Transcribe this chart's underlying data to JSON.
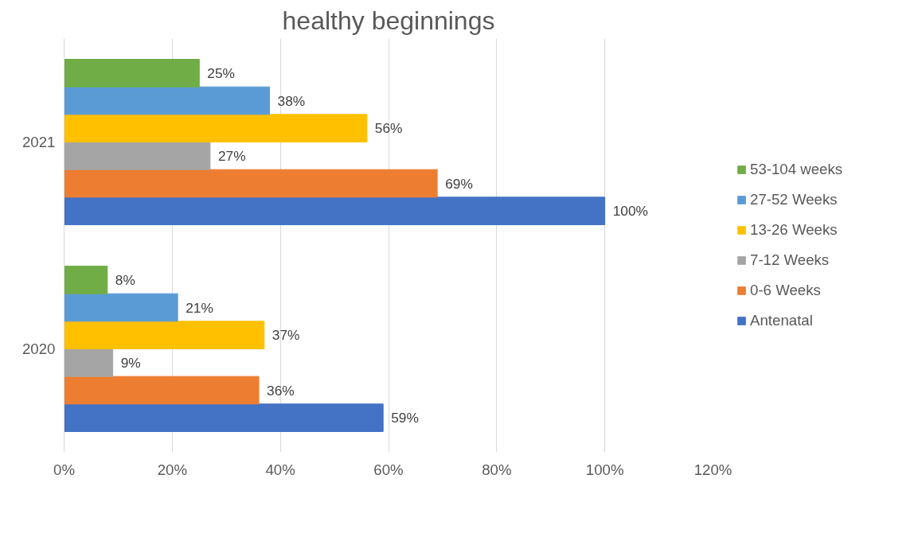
{
  "chart_data": {
    "type": "bar",
    "orientation": "horizontal",
    "title": "healthy beginnings",
    "categories": [
      "2021",
      "2020"
    ],
    "series": [
      {
        "name": "Antenatal",
        "color": "#4472c4",
        "values": [
          100,
          59
        ],
        "value_labels": [
          "100%",
          "59%"
        ]
      },
      {
        "name": "0-6 Weeks",
        "color": "#ed7d31",
        "values": [
          69,
          36
        ],
        "value_labels": [
          "69%",
          "36%"
        ]
      },
      {
        "name": "7-12 Weeks",
        "color": "#a5a5a5",
        "values": [
          27,
          9
        ],
        "value_labels": [
          "27%",
          "9%"
        ]
      },
      {
        "name": "13-26 Weeks",
        "color": "#ffc000",
        "values": [
          56,
          37
        ],
        "value_labels": [
          "56%",
          "37%"
        ]
      },
      {
        "name": "27-52 Weeks",
        "color": "#5b9bd5",
        "values": [
          38,
          21
        ],
        "value_labels": [
          "38%",
          "21%"
        ]
      },
      {
        "name": "53-104 weeks",
        "color": "#70ad47",
        "values": [
          25,
          8
        ],
        "value_labels": [
          "25%",
          "8%"
        ]
      }
    ],
    "xlim": [
      0,
      120
    ],
    "xticks": [
      {
        "value": 0,
        "label": "0%"
      },
      {
        "value": 20,
        "label": "20%"
      },
      {
        "value": 40,
        "label": "40%"
      },
      {
        "value": 60,
        "label": "60%"
      },
      {
        "value": 80,
        "label": "80%"
      },
      {
        "value": 100,
        "label": "100%"
      },
      {
        "value": 120,
        "label": "120%"
      }
    ],
    "grid": "x",
    "legend": "right"
  }
}
